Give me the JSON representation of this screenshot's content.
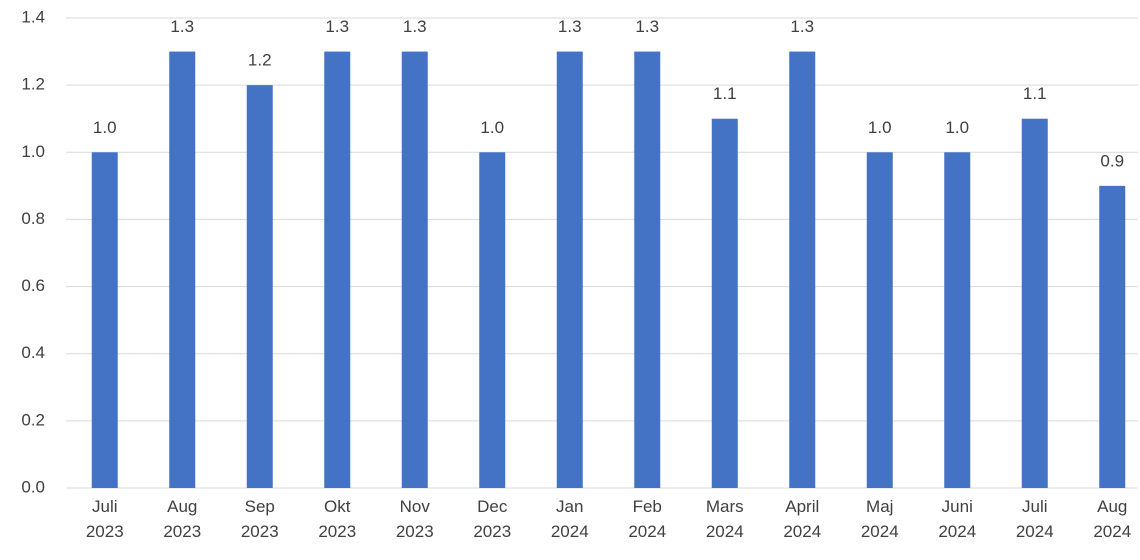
{
  "chart_data": {
    "type": "bar",
    "categories": [
      "Juli 2023",
      "Aug 2023",
      "Sep 2023",
      "Okt 2023",
      "Nov 2023",
      "Dec 2023",
      "Jan 2024",
      "Feb 2024",
      "Mars 2024",
      "April 2024",
      "Maj 2024",
      "Juni 2024",
      "Juli 2024",
      "Aug 2024"
    ],
    "values": [
      1.0,
      1.3,
      1.2,
      1.3,
      1.3,
      1.0,
      1.3,
      1.3,
      1.1,
      1.3,
      1.0,
      1.0,
      1.1,
      0.9
    ],
    "value_labels": [
      "1.0",
      "1.3",
      "1.2",
      "1.3",
      "1.3",
      "1.0",
      "1.3",
      "1.3",
      "1.1",
      "1.3",
      "1.0",
      "1.0",
      "1.1",
      "0.9"
    ],
    "color": "#4472c4",
    "ylim": [
      0,
      1.4
    ],
    "yticks": [
      {
        "value": 0,
        "label": "0.0"
      },
      0.2,
      0.4,
      0.6,
      0.8,
      {
        "value": 1,
        "label": "1.0"
      },
      1.2,
      1.4
    ],
    "grid": true
  }
}
